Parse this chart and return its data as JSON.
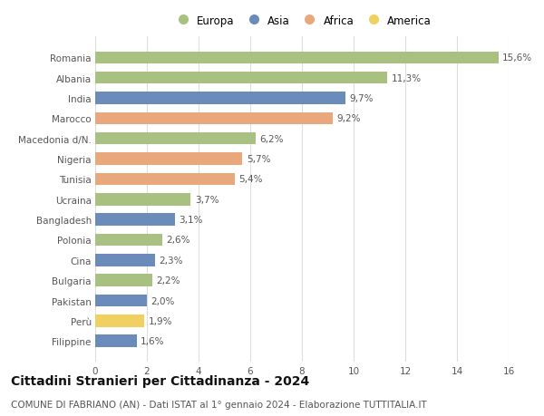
{
  "categories": [
    "Romania",
    "Albania",
    "India",
    "Marocco",
    "Macedonia d/N.",
    "Nigeria",
    "Tunisia",
    "Ucraina",
    "Bangladesh",
    "Polonia",
    "Cina",
    "Bulgaria",
    "Pakistan",
    "Perù",
    "Filippine"
  ],
  "values": [
    15.6,
    11.3,
    9.7,
    9.2,
    6.2,
    5.7,
    5.4,
    3.7,
    3.1,
    2.6,
    2.3,
    2.2,
    2.0,
    1.9,
    1.6
  ],
  "labels": [
    "15,6%",
    "11,3%",
    "9,7%",
    "9,2%",
    "6,2%",
    "5,7%",
    "5,4%",
    "3,7%",
    "3,1%",
    "2,6%",
    "2,3%",
    "2,2%",
    "2,0%",
    "1,9%",
    "1,6%"
  ],
  "continent": [
    "Europa",
    "Europa",
    "Asia",
    "Africa",
    "Europa",
    "Africa",
    "Africa",
    "Europa",
    "Asia",
    "Europa",
    "Asia",
    "Europa",
    "Asia",
    "America",
    "Asia"
  ],
  "colors": {
    "Europa": "#a8c080",
    "Asia": "#6b8cba",
    "Africa": "#e8a87c",
    "America": "#f0d060"
  },
  "legend_order": [
    "Europa",
    "Asia",
    "Africa",
    "America"
  ],
  "xlim": [
    0,
    16
  ],
  "xticks": [
    0,
    2,
    4,
    6,
    8,
    10,
    12,
    14,
    16
  ],
  "title": "Cittadini Stranieri per Cittadinanza - 2024",
  "subtitle": "COMUNE DI FABRIANO (AN) - Dati ISTAT al 1° gennaio 2024 - Elaborazione TUTTITALIA.IT",
  "title_fontsize": 10,
  "subtitle_fontsize": 7.5,
  "bar_height": 0.6,
  "background_color": "#ffffff",
  "grid_color": "#dddddd",
  "label_fontsize": 7.5,
  "tick_fontsize": 7.5,
  "ytick_fontsize": 7.5
}
